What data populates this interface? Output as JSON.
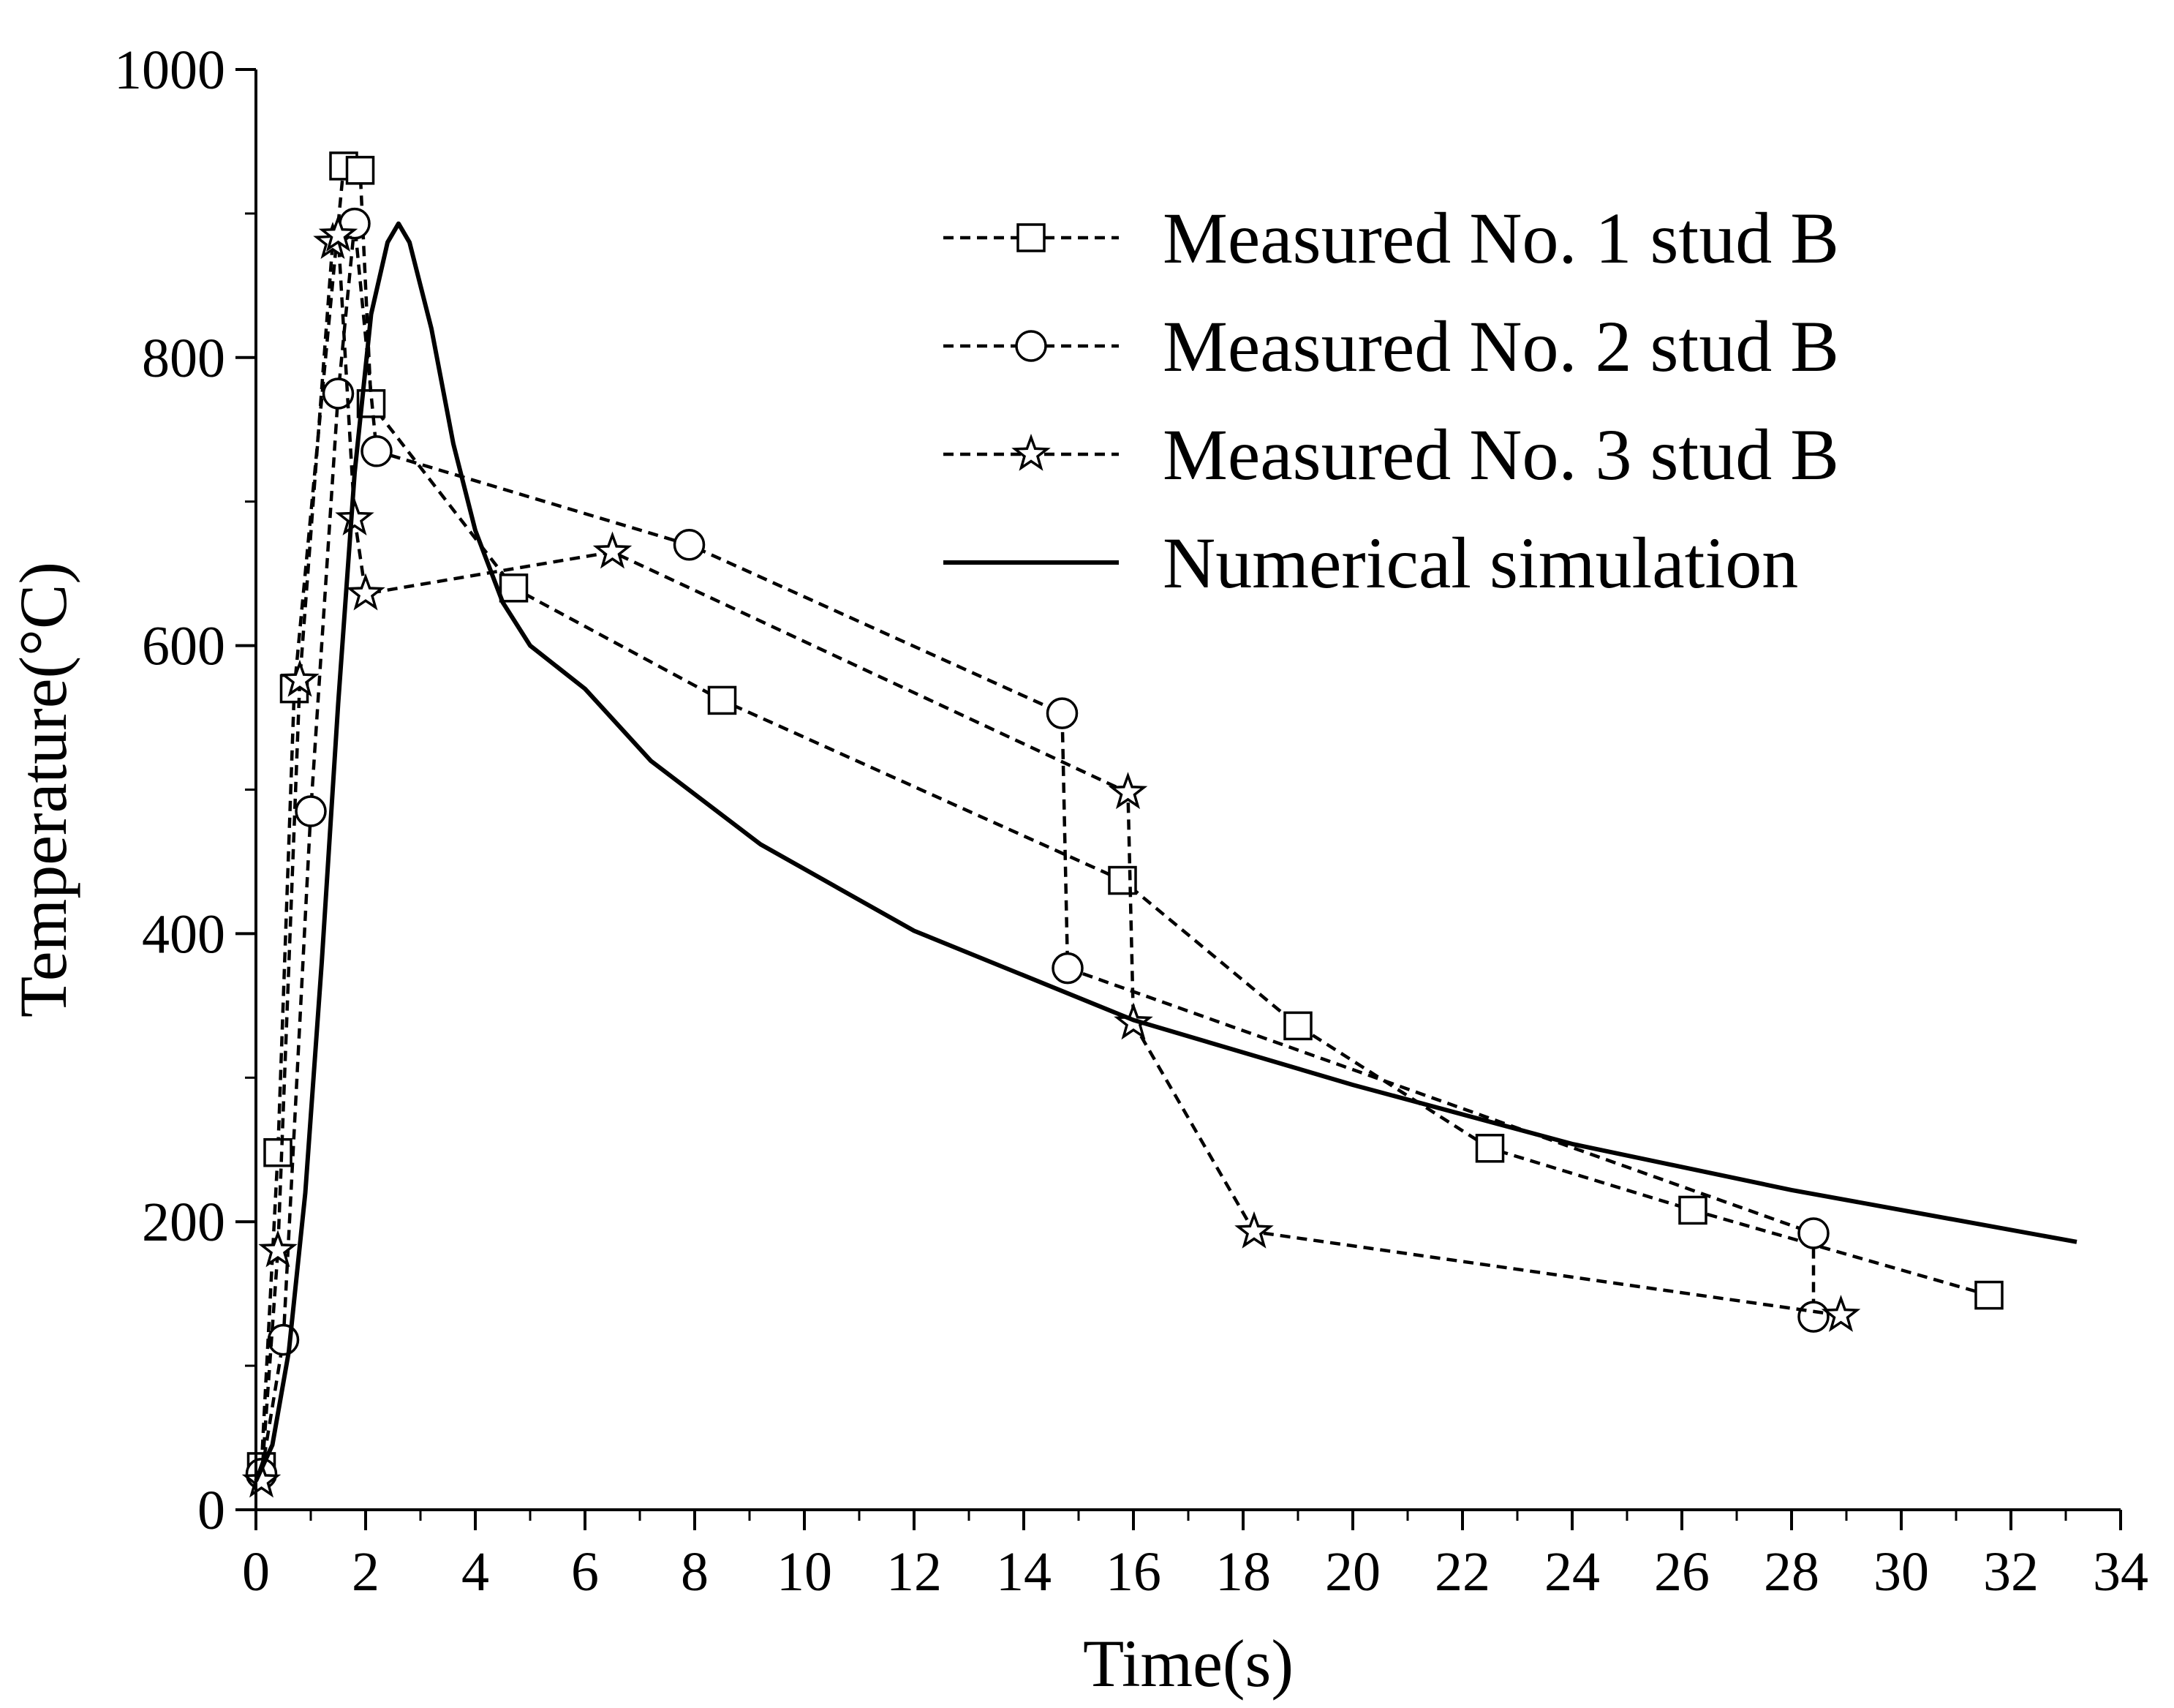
{
  "chart_data": {
    "type": "line",
    "title": "",
    "xlabel": "Time(s)",
    "ylabel": "Temperature(°C)",
    "xlim": [
      0,
      34
    ],
    "ylim": [
      0,
      1000
    ],
    "x_ticks": [
      0,
      2,
      4,
      6,
      8,
      10,
      12,
      14,
      16,
      18,
      20,
      22,
      24,
      26,
      28,
      30,
      32,
      34
    ],
    "y_ticks": [
      0,
      200,
      400,
      600,
      800,
      1000
    ],
    "legend_position": "top-right",
    "series": [
      {
        "name": "Measured No. 1 stud B",
        "style": "dashed",
        "marker": "square",
        "points": [
          [
            0.1,
            30
          ],
          [
            0.4,
            248
          ],
          [
            0.7,
            570
          ],
          [
            1.6,
            933
          ],
          [
            1.9,
            930
          ],
          [
            2.1,
            768
          ],
          [
            4.7,
            640
          ],
          [
            8.5,
            562
          ],
          [
            15.8,
            437
          ],
          [
            19.0,
            336
          ],
          [
            22.5,
            251
          ],
          [
            26.2,
            208
          ],
          [
            31.6,
            149
          ]
        ]
      },
      {
        "name": "Measured No. 2 stud B",
        "style": "dashed",
        "marker": "circle",
        "points": [
          [
            0.1,
            25
          ],
          [
            0.5,
            118
          ],
          [
            1.0,
            485
          ],
          [
            1.5,
            775
          ],
          [
            1.8,
            893
          ],
          [
            2.2,
            735
          ],
          [
            7.9,
            670
          ],
          [
            14.7,
            553
          ],
          [
            14.8,
            376
          ],
          [
            28.4,
            192
          ],
          [
            28.4,
            134
          ]
        ]
      },
      {
        "name": "Measured No. 3 stud B",
        "style": "dashed",
        "marker": "star",
        "points": [
          [
            0.1,
            20
          ],
          [
            0.4,
            180
          ],
          [
            0.8,
            576
          ],
          [
            1.4,
            880
          ],
          [
            1.5,
            885
          ],
          [
            1.8,
            688
          ],
          [
            2.0,
            636
          ],
          [
            6.5,
            665
          ],
          [
            15.9,
            498
          ],
          [
            16.0,
            338
          ],
          [
            18.2,
            193
          ],
          [
            28.9,
            135
          ]
        ]
      },
      {
        "name": "Numerical simulation",
        "style": "solid",
        "marker": "none",
        "points": [
          [
            0,
            20
          ],
          [
            0.3,
            45
          ],
          [
            0.6,
            110
          ],
          [
            0.9,
            220
          ],
          [
            1.2,
            380
          ],
          [
            1.5,
            560
          ],
          [
            1.8,
            720
          ],
          [
            2.1,
            830
          ],
          [
            2.4,
            880
          ],
          [
            2.6,
            893
          ],
          [
            2.8,
            880
          ],
          [
            3.2,
            820
          ],
          [
            3.6,
            740
          ],
          [
            4.0,
            680
          ],
          [
            4.5,
            630
          ],
          [
            5.0,
            600
          ],
          [
            6.0,
            570
          ],
          [
            7.2,
            520
          ],
          [
            9.2,
            462
          ],
          [
            12.0,
            402
          ],
          [
            16.0,
            340
          ],
          [
            20.0,
            295
          ],
          [
            24.0,
            254
          ],
          [
            28.0,
            222
          ],
          [
            33.2,
            186
          ]
        ]
      }
    ]
  }
}
